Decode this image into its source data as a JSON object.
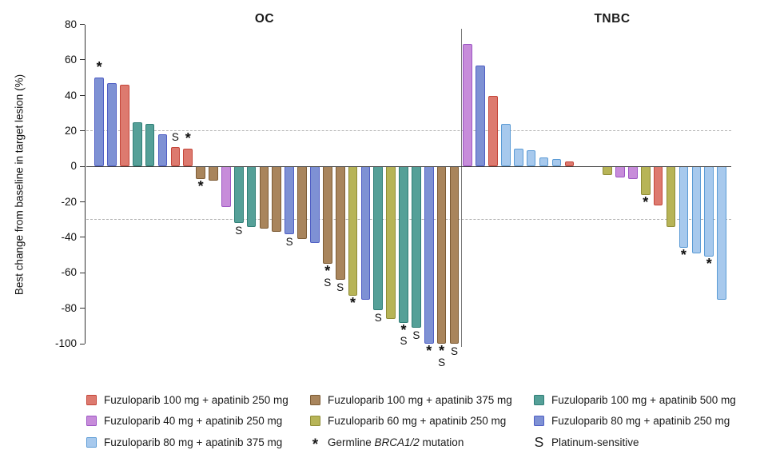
{
  "chart_data": {
    "type": "bar",
    "subtype": "waterfall",
    "ylabel": "Best change from baseline in target lesion (%)",
    "ylim": [
      -100,
      80
    ],
    "yticks": [
      80,
      60,
      40,
      20,
      0,
      -20,
      -40,
      -60,
      -80,
      -100
    ],
    "reference_lines": [
      20,
      -30
    ],
    "grid": "off",
    "legend_position": "bottom",
    "colors": {
      "red": {
        "fill": "#dd7a6f",
        "border": "#c4463a"
      },
      "purple": {
        "fill": "#c78cda",
        "border": "#9c55c4"
      },
      "lightblue": {
        "fill": "#a7c9ed",
        "border": "#5b9bd5"
      },
      "brown": {
        "fill": "#a9855c",
        "border": "#7d5c35"
      },
      "yellow": {
        "fill": "#b7b457",
        "border": "#8f8c36"
      },
      "teal": {
        "fill": "#55a098",
        "border": "#2f7e76"
      },
      "blue": {
        "fill": "#7e91d4",
        "border": "#4f5ec4"
      }
    },
    "annotations_key": {
      "star": "Germline BRCA1/2 mutation",
      "S": "Platinum-sensitive"
    },
    "panels": [
      {
        "name": "OC",
        "bars": [
          {
            "v": 50,
            "c": "blue",
            "f": "*"
          },
          {
            "v": 47,
            "c": "blue"
          },
          {
            "v": 46,
            "c": "red"
          },
          {
            "v": 25,
            "c": "teal"
          },
          {
            "v": 24,
            "c": "teal"
          },
          {
            "v": 18,
            "c": "blue"
          },
          {
            "v": 11,
            "c": "red",
            "f": "S"
          },
          {
            "v": 10,
            "c": "red",
            "f": "*"
          },
          {
            "v": -7,
            "c": "brown",
            "f": "*"
          },
          {
            "v": -8,
            "c": "brown"
          },
          {
            "v": -23,
            "c": "purple"
          },
          {
            "v": -32,
            "c": "teal",
            "f": "S"
          },
          {
            "v": -34,
            "c": "teal"
          },
          {
            "v": -35,
            "c": "brown"
          },
          {
            "v": -37,
            "c": "brown"
          },
          {
            "v": -38,
            "c": "blue",
            "f": "S"
          },
          {
            "v": -41,
            "c": "brown"
          },
          {
            "v": -43,
            "c": "blue"
          },
          {
            "v": -55,
            "c": "brown",
            "f": "*S"
          },
          {
            "v": -64,
            "c": "brown",
            "f": "S"
          },
          {
            "v": -73,
            "c": "yellow",
            "f": "*"
          },
          {
            "v": -75,
            "c": "blue"
          },
          {
            "v": -81,
            "c": "teal",
            "f": "S"
          },
          {
            "v": -86,
            "c": "yellow"
          },
          {
            "v": -88,
            "c": "teal",
            "f": "*S"
          },
          {
            "v": -91,
            "c": "teal",
            "f": "S"
          },
          {
            "v": -100,
            "c": "blue",
            "f": "*"
          },
          {
            "v": -100,
            "c": "brown",
            "f": "*S"
          },
          {
            "v": -100,
            "c": "brown",
            "f": "S"
          }
        ]
      },
      {
        "name": "TNBC",
        "bars": [
          {
            "v": 69,
            "c": "purple"
          },
          {
            "v": 57,
            "c": "blue"
          },
          {
            "v": 40,
            "c": "red"
          },
          {
            "v": 24,
            "c": "lightblue"
          },
          {
            "v": 10,
            "c": "lightblue"
          },
          {
            "v": 9,
            "c": "lightblue"
          },
          {
            "v": 5,
            "c": "lightblue"
          },
          {
            "v": 4,
            "c": "lightblue"
          },
          {
            "v": 3,
            "c": "red"
          },
          {
            "spacer": true
          },
          {
            "spacer": true
          },
          {
            "v": -5,
            "c": "yellow"
          },
          {
            "v": -6,
            "c": "purple"
          },
          {
            "v": -7,
            "c": "purple"
          },
          {
            "v": -16,
            "c": "yellow",
            "f": "*"
          },
          {
            "v": -22,
            "c": "red"
          },
          {
            "v": -34,
            "c": "yellow"
          },
          {
            "v": -46,
            "c": "lightblue",
            "f": "*"
          },
          {
            "v": -49,
            "c": "lightblue"
          },
          {
            "v": -51,
            "c": "lightblue",
            "f": "*"
          },
          {
            "v": -75,
            "c": "lightblue"
          }
        ]
      }
    ],
    "legend": {
      "columns": [
        [
          {
            "swatch": "red",
            "label": "Fuzuloparib 100 mg + apatinib 250 mg"
          },
          {
            "swatch": "purple",
            "label": "Fuzuloparib 40 mg + apatinib 250 mg"
          },
          {
            "swatch": "lightblue",
            "label": "Fuzuloparib 80 mg + apatinib 375 mg"
          }
        ],
        [
          {
            "swatch": "brown",
            "label": "Fuzuloparib 100 mg + apatinib 375 mg"
          },
          {
            "swatch": "yellow",
            "label": "Fuzuloparib 60 mg + apatinib 250 mg"
          },
          {
            "symbol": "*",
            "label_parts": {
              "pre": "Germline ",
              "italic": "BRCA1/2",
              "post": " mutation"
            }
          }
        ],
        [
          {
            "swatch": "teal",
            "label": "Fuzuloparib 100 mg + apatinib 500 mg"
          },
          {
            "swatch": "blue",
            "label": "Fuzuloparib 80 mg + apatinib 250 mg"
          },
          {
            "symbol": "S",
            "label": "Platinum-sensitive"
          }
        ]
      ]
    }
  }
}
